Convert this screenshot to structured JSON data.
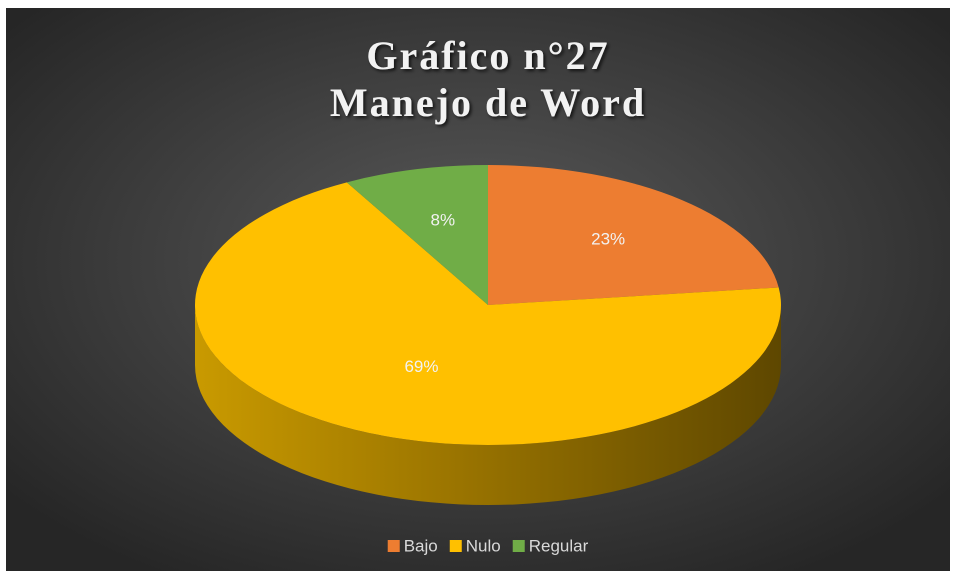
{
  "chart_data": {
    "type": "pie",
    "title": [
      "Gráfico n°27",
      "Manejo de Word"
    ],
    "categories": [
      "Bajo",
      "Nulo",
      "Regular"
    ],
    "values": [
      23,
      69,
      8
    ],
    "value_labels": [
      "23%",
      "69%",
      "8%"
    ],
    "colors": [
      "#ed7d31",
      "#ffc000",
      "#70ad47"
    ],
    "legend": "bottom"
  }
}
